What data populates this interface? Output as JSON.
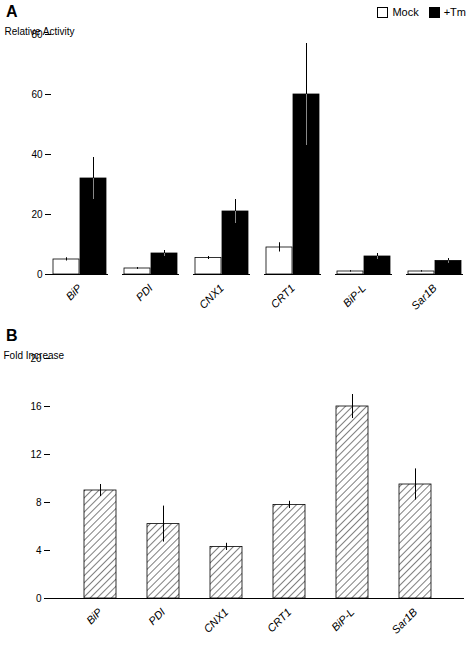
{
  "chart_data": [
    {
      "type": "bar",
      "title": "A",
      "categories": [
        "BiP",
        "PDI",
        "CNX1",
        "CRT1",
        "BiP-L",
        "Sar1B"
      ],
      "series": [
        {
          "name": "Mock",
          "color": "white",
          "values": [
            5,
            2,
            5.5,
            9,
            1,
            1
          ],
          "errors": [
            0.5,
            0.3,
            0.5,
            1.5,
            0.2,
            0.2
          ]
        },
        {
          "name": "+Tm",
          "color": "black",
          "values": [
            32,
            7,
            21,
            60,
            6,
            4.5
          ],
          "errors": [
            7,
            1,
            4,
            17,
            1,
            0.8
          ]
        }
      ],
      "ylabel": "Relative Activity",
      "ylim": [
        0,
        80
      ],
      "yticks": [
        0,
        20,
        40,
        60,
        80
      ],
      "legend": "upper right"
    },
    {
      "type": "bar",
      "title": "B",
      "categories": [
        "BiP",
        "PDI",
        "CNX1",
        "CRT1",
        "BiP-L",
        "Sar1B"
      ],
      "values": [
        9,
        6.2,
        4.3,
        7.8,
        16,
        9.5
      ],
      "errors": [
        0.5,
        1.5,
        0.3,
        0.3,
        1.0,
        1.3
      ],
      "color": "white",
      "ylabel": "Fold Increase",
      "ylim": [
        0,
        20
      ],
      "yticks": [
        0,
        4,
        8,
        12,
        16,
        20
      ]
    }
  ]
}
